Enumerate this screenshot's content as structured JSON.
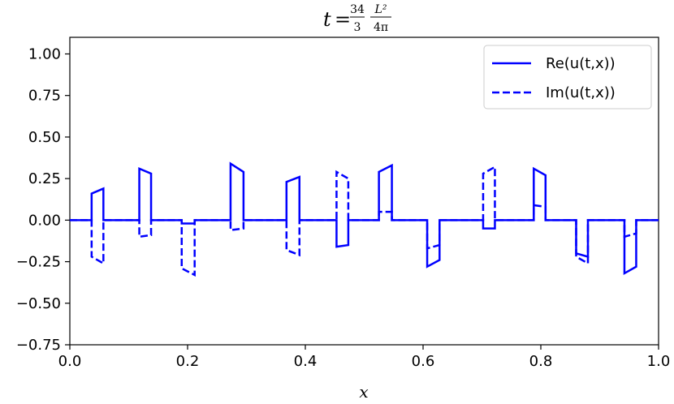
{
  "chart_data": {
    "type": "line",
    "title": "t = 34/3 · L²/4π",
    "title_parts": {
      "var": "t",
      "eq": "=",
      "num1": "34",
      "den1": "3",
      "num2": "L²",
      "den2": "4π"
    },
    "xlabel": "x",
    "ylabel": "",
    "xlim": [
      0.0,
      1.0
    ],
    "ylim": [
      -0.75,
      1.1
    ],
    "xticks": [
      0.0,
      0.2,
      0.4,
      0.6,
      0.8,
      1.0
    ],
    "xtick_labels": [
      "0.0",
      "0.2",
      "0.4",
      "0.6",
      "0.8",
      "1.0"
    ],
    "yticks": [
      -0.75,
      -0.5,
      -0.25,
      0.0,
      0.25,
      0.5,
      0.75,
      1.0
    ],
    "ytick_labels": [
      "−0.75",
      "−0.50",
      "−0.25",
      "0.00",
      "0.25",
      "0.50",
      "0.75",
      "1.00"
    ],
    "grid": false,
    "legend_position": "top-right",
    "color": "#0000ff",
    "series": [
      {
        "name": "Re(u(t,x))",
        "style": "solid",
        "x": [
          0.0,
          0.037,
          0.037,
          0.057,
          0.057,
          0.118,
          0.118,
          0.138,
          0.138,
          0.19,
          0.19,
          0.212,
          0.212,
          0.273,
          0.273,
          0.295,
          0.295,
          0.368,
          0.368,
          0.39,
          0.39,
          0.453,
          0.453,
          0.473,
          0.473,
          0.525,
          0.525,
          0.547,
          0.547,
          0.607,
          0.607,
          0.628,
          0.628,
          0.702,
          0.702,
          0.722,
          0.722,
          0.788,
          0.788,
          0.808,
          0.808,
          0.86,
          0.86,
          0.88,
          0.88,
          0.942,
          0.942,
          0.962,
          0.962,
          1.0
        ],
        "y": [
          0.0,
          0.0,
          0.16,
          0.19,
          0.0,
          0.0,
          0.31,
          0.28,
          0.0,
          0.0,
          -0.02,
          -0.02,
          0.0,
          0.0,
          0.34,
          0.29,
          0.0,
          0.0,
          0.23,
          0.26,
          0.0,
          0.0,
          -0.16,
          -0.15,
          0.0,
          0.0,
          0.29,
          0.33,
          0.0,
          0.0,
          -0.28,
          -0.24,
          0.0,
          0.0,
          -0.05,
          -0.05,
          0.0,
          0.0,
          0.31,
          0.27,
          0.0,
          0.0,
          -0.2,
          -0.22,
          0.0,
          0.0,
          -0.32,
          -0.28,
          0.0,
          0.0
        ]
      },
      {
        "name": "Im(u(t,x))",
        "style": "dashed",
        "x": [
          0.0,
          0.037,
          0.037,
          0.057,
          0.057,
          0.118,
          0.118,
          0.138,
          0.138,
          0.19,
          0.19,
          0.212,
          0.212,
          0.273,
          0.273,
          0.295,
          0.295,
          0.368,
          0.368,
          0.39,
          0.39,
          0.453,
          0.453,
          0.473,
          0.473,
          0.525,
          0.525,
          0.547,
          0.547,
          0.607,
          0.607,
          0.628,
          0.628,
          0.702,
          0.702,
          0.722,
          0.722,
          0.788,
          0.788,
          0.808,
          0.808,
          0.86,
          0.86,
          0.88,
          0.88,
          0.942,
          0.942,
          0.962,
          0.962,
          1.0
        ],
        "y": [
          0.0,
          0.0,
          -0.22,
          -0.26,
          0.0,
          0.0,
          -0.1,
          -0.09,
          0.0,
          0.0,
          -0.29,
          -0.33,
          0.0,
          0.0,
          -0.06,
          -0.05,
          0.0,
          0.0,
          -0.18,
          -0.21,
          0.0,
          0.0,
          0.29,
          0.25,
          0.0,
          0.0,
          0.05,
          0.05,
          0.0,
          0.0,
          -0.17,
          -0.15,
          0.0,
          0.0,
          0.28,
          0.32,
          0.0,
          0.0,
          0.09,
          0.08,
          0.0,
          0.0,
          -0.22,
          -0.26,
          0.0,
          0.0,
          -0.1,
          -0.08,
          0.0,
          0.0
        ]
      }
    ]
  }
}
